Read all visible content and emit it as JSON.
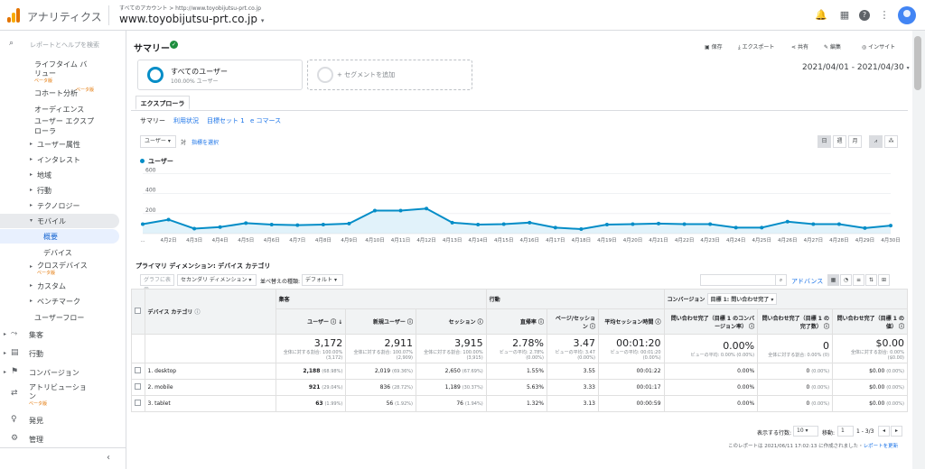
{
  "header": {
    "app_title": "アナリティクス",
    "account_path": "すべてのアカウント > http://www.toyobijutsu-prt.co.jp",
    "property": "www.toyobijutsu-prt.co.jp"
  },
  "sidebar": {
    "search_placeholder": "レポートとヘルプを検索",
    "items": [
      {
        "label": "ライフタイム バ"
      },
      {
        "label": "リュー"
      },
      {
        "label": "ベータ版"
      },
      {
        "label": "コホート分析"
      },
      {
        "label": "ベータ版"
      },
      {
        "label": "オーディエンス"
      },
      {
        "label": "ユーザー エクスプ"
      },
      {
        "label": "ローラ"
      },
      {
        "label": "ユーザー属性"
      },
      {
        "label": "インタレスト"
      },
      {
        "label": "地域"
      },
      {
        "label": "行動"
      },
      {
        "label": "テクノロジー"
      },
      {
        "label": "モバイル"
      },
      {
        "label": "概要"
      },
      {
        "label": "デバイス"
      },
      {
        "label": "クロスデバイス"
      },
      {
        "label": "ベータ版"
      },
      {
        "label": "カスタム"
      },
      {
        "label": "ベンチマーク"
      },
      {
        "label": "ユーザーフロー"
      },
      {
        "label": "集客"
      },
      {
        "label": "行動"
      },
      {
        "label": "コンバージョン"
      },
      {
        "label": "アトリビューショ"
      },
      {
        "label": "ン"
      },
      {
        "label": "ベータ版"
      },
      {
        "label": "発見"
      },
      {
        "label": "管理"
      }
    ]
  },
  "page": {
    "title": "サマリー",
    "tools": [
      "保存",
      "エクスポート",
      "共有",
      "編集",
      "インサイト"
    ],
    "segment_name": "すべてのユーザー",
    "segment_pct": "100.00% ユーザー",
    "add_segment": "+ セグメントを追加",
    "date_range": "2021/04/01 - 2021/04/30",
    "explorer_tab": "エクスプローラ",
    "subtabs": [
      "サマリー",
      "利用状況",
      "目標セット 1",
      "e コマース"
    ],
    "metric_select": "ユーザー",
    "vs": "対",
    "select_metric": "指標を選択",
    "period_buttons": [
      "日",
      "週",
      "月"
    ],
    "legend": "ユーザー"
  },
  "chart_data": {
    "type": "area",
    "series": [
      {
        "name": "ユーザー",
        "values": [
          95,
          140,
          50,
          65,
          105,
          90,
          85,
          90,
          100,
          230,
          230,
          250,
          110,
          90,
          95,
          110,
          60,
          45,
          90,
          95,
          100,
          95,
          95,
          60,
          60,
          120,
          95,
          95,
          55,
          80
        ]
      }
    ],
    "x_ticks": [
      "...",
      "4月2日",
      "4月3日",
      "4月4日",
      "4月5日",
      "4月6日",
      "4月7日",
      "4月8日",
      "4月9日",
      "4月10日",
      "4月11日",
      "4月12日",
      "4月13日",
      "4月14日",
      "4月15日",
      "4月16日",
      "4月17日",
      "4月18日",
      "4月19日",
      "4月20日",
      "4月21日",
      "4月22日",
      "4月23日",
      "4月24日",
      "4月25日",
      "4月26日",
      "4月27日",
      "4月28日",
      "4月29日",
      "4月30日"
    ],
    "y_ticks": [
      "600",
      "400",
      "200"
    ],
    "ylim": [
      0,
      650
    ],
    "color": "#058dc7"
  },
  "table": {
    "section_title": "プライマリ ディメンション: デバイス カテゴリ",
    "plot_rows": "グラフに表示",
    "secondary_dim": "セカンダリ ディメンション",
    "sort_type": "並べ替えの種類:",
    "sort_default": "デフォルト",
    "advanced": "アドバンス",
    "dimension_header": "デバイス カテゴリ",
    "groups": [
      "集客",
      "行動",
      "コンバージョン"
    ],
    "goal_select": "目標 1: 問い合わせ完了",
    "columns": [
      "ユーザー",
      "新規ユーザー",
      "セッション",
      "直帰率",
      "ページ/セッション",
      "平均セッション時間",
      "問い合わせ完了（目標 1 のコンバージョン率）",
      "問い合わせ完了（目標 1 の完了数）",
      "問い合わせ完了（目標 1 の値）"
    ],
    "totals": [
      "3,172",
      "2,911",
      "3,915",
      "2.78%",
      "3.47",
      "00:01:20",
      "0.00%",
      "0",
      "$0.00"
    ],
    "totals_sub": [
      "全体に対する割合: 100.00% (3,172)",
      "全体に対する割合: 100.07% (2,909)",
      "全体に対する割合: 100.00% (3,915)",
      "ビューの平均: 2.78% (0.00%)",
      "ビューの平均: 3.47 (0.00%)",
      "ビューの平均: 00:01:20 (0.00%)",
      "ビューの平均: 0.00% (0.00%)",
      "全体に対する割合: 0.00% (0)",
      "全体に対する割合: 0.00% ($0.00)"
    ],
    "rows": [
      {
        "idx": "1.",
        "name": "desktop",
        "cells": [
          "2,188",
          "(68.98%)",
          "2,019",
          "(69.36%)",
          "2,650",
          "(67.69%)",
          "1.55%",
          "3.55",
          "00:01:22",
          "0.00%",
          "0",
          "(0.00%)",
          "$0.00",
          "(0.00%)"
        ]
      },
      {
        "idx": "2.",
        "name": "mobile",
        "cells": [
          "921",
          "(29.04%)",
          "836",
          "(28.72%)",
          "1,189",
          "(30.37%)",
          "5.63%",
          "3.33",
          "00:01:17",
          "0.00%",
          "0",
          "(0.00%)",
          "$0.00",
          "(0.00%)"
        ]
      },
      {
        "idx": "3.",
        "name": "tablet",
        "cells": [
          "63",
          "(1.99%)",
          "56",
          "(1.92%)",
          "76",
          "(1.94%)",
          "1.32%",
          "3.13",
          "00:00:59",
          "0.00%",
          "0",
          "(0.00%)",
          "$0.00",
          "(0.00%)"
        ]
      }
    ],
    "rows_label": "表示する行数:",
    "rows_value": "10",
    "goto_label": "移動:",
    "goto_value": "1",
    "range": "1 - 3/3",
    "report_time": "このレポートは 2021/06/11 17:02:13 に作成されました・",
    "refresh": "レポートを更新"
  }
}
